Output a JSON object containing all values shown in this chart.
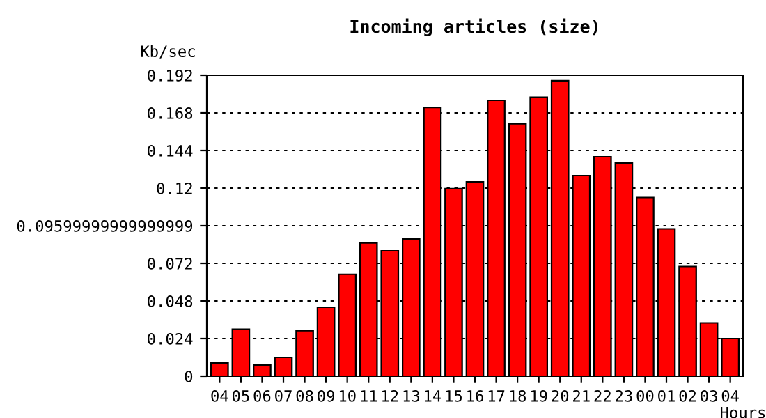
{
  "chart_data": {
    "type": "bar",
    "title": "Incoming articles (size)",
    "ylabel": "Kb/sec",
    "xlabel": "Hours",
    "categories": [
      "04",
      "05",
      "06",
      "07",
      "08",
      "09",
      "10",
      "11",
      "12",
      "13",
      "14",
      "15",
      "16",
      "17",
      "18",
      "19",
      "20",
      "21",
      "22",
      "23",
      "00",
      "01",
      "02",
      "03",
      "04"
    ],
    "series": [
      {
        "color": "#ff0000",
        "values": [
          0.0085,
          0.03,
          0.0072,
          0.012,
          0.029,
          0.044,
          0.065,
          0.085,
          0.08,
          0.0875,
          0.1715,
          0.1196,
          0.124,
          0.176,
          0.161,
          0.178,
          0.1885,
          0.128,
          0.14,
          0.136,
          0.114,
          0.094,
          0.07,
          0.034,
          0.024
        ]
      }
    ],
    "ylim": [
      0,
      0.192
    ],
    "yticks": [
      0,
      0.024,
      0.048,
      0.072,
      {
        "value": 0.096,
        "label": "0.09599999999999999"
      },
      0.12,
      0.144,
      0.168,
      0.192
    ],
    "grid": "y",
    "legend": false
  }
}
